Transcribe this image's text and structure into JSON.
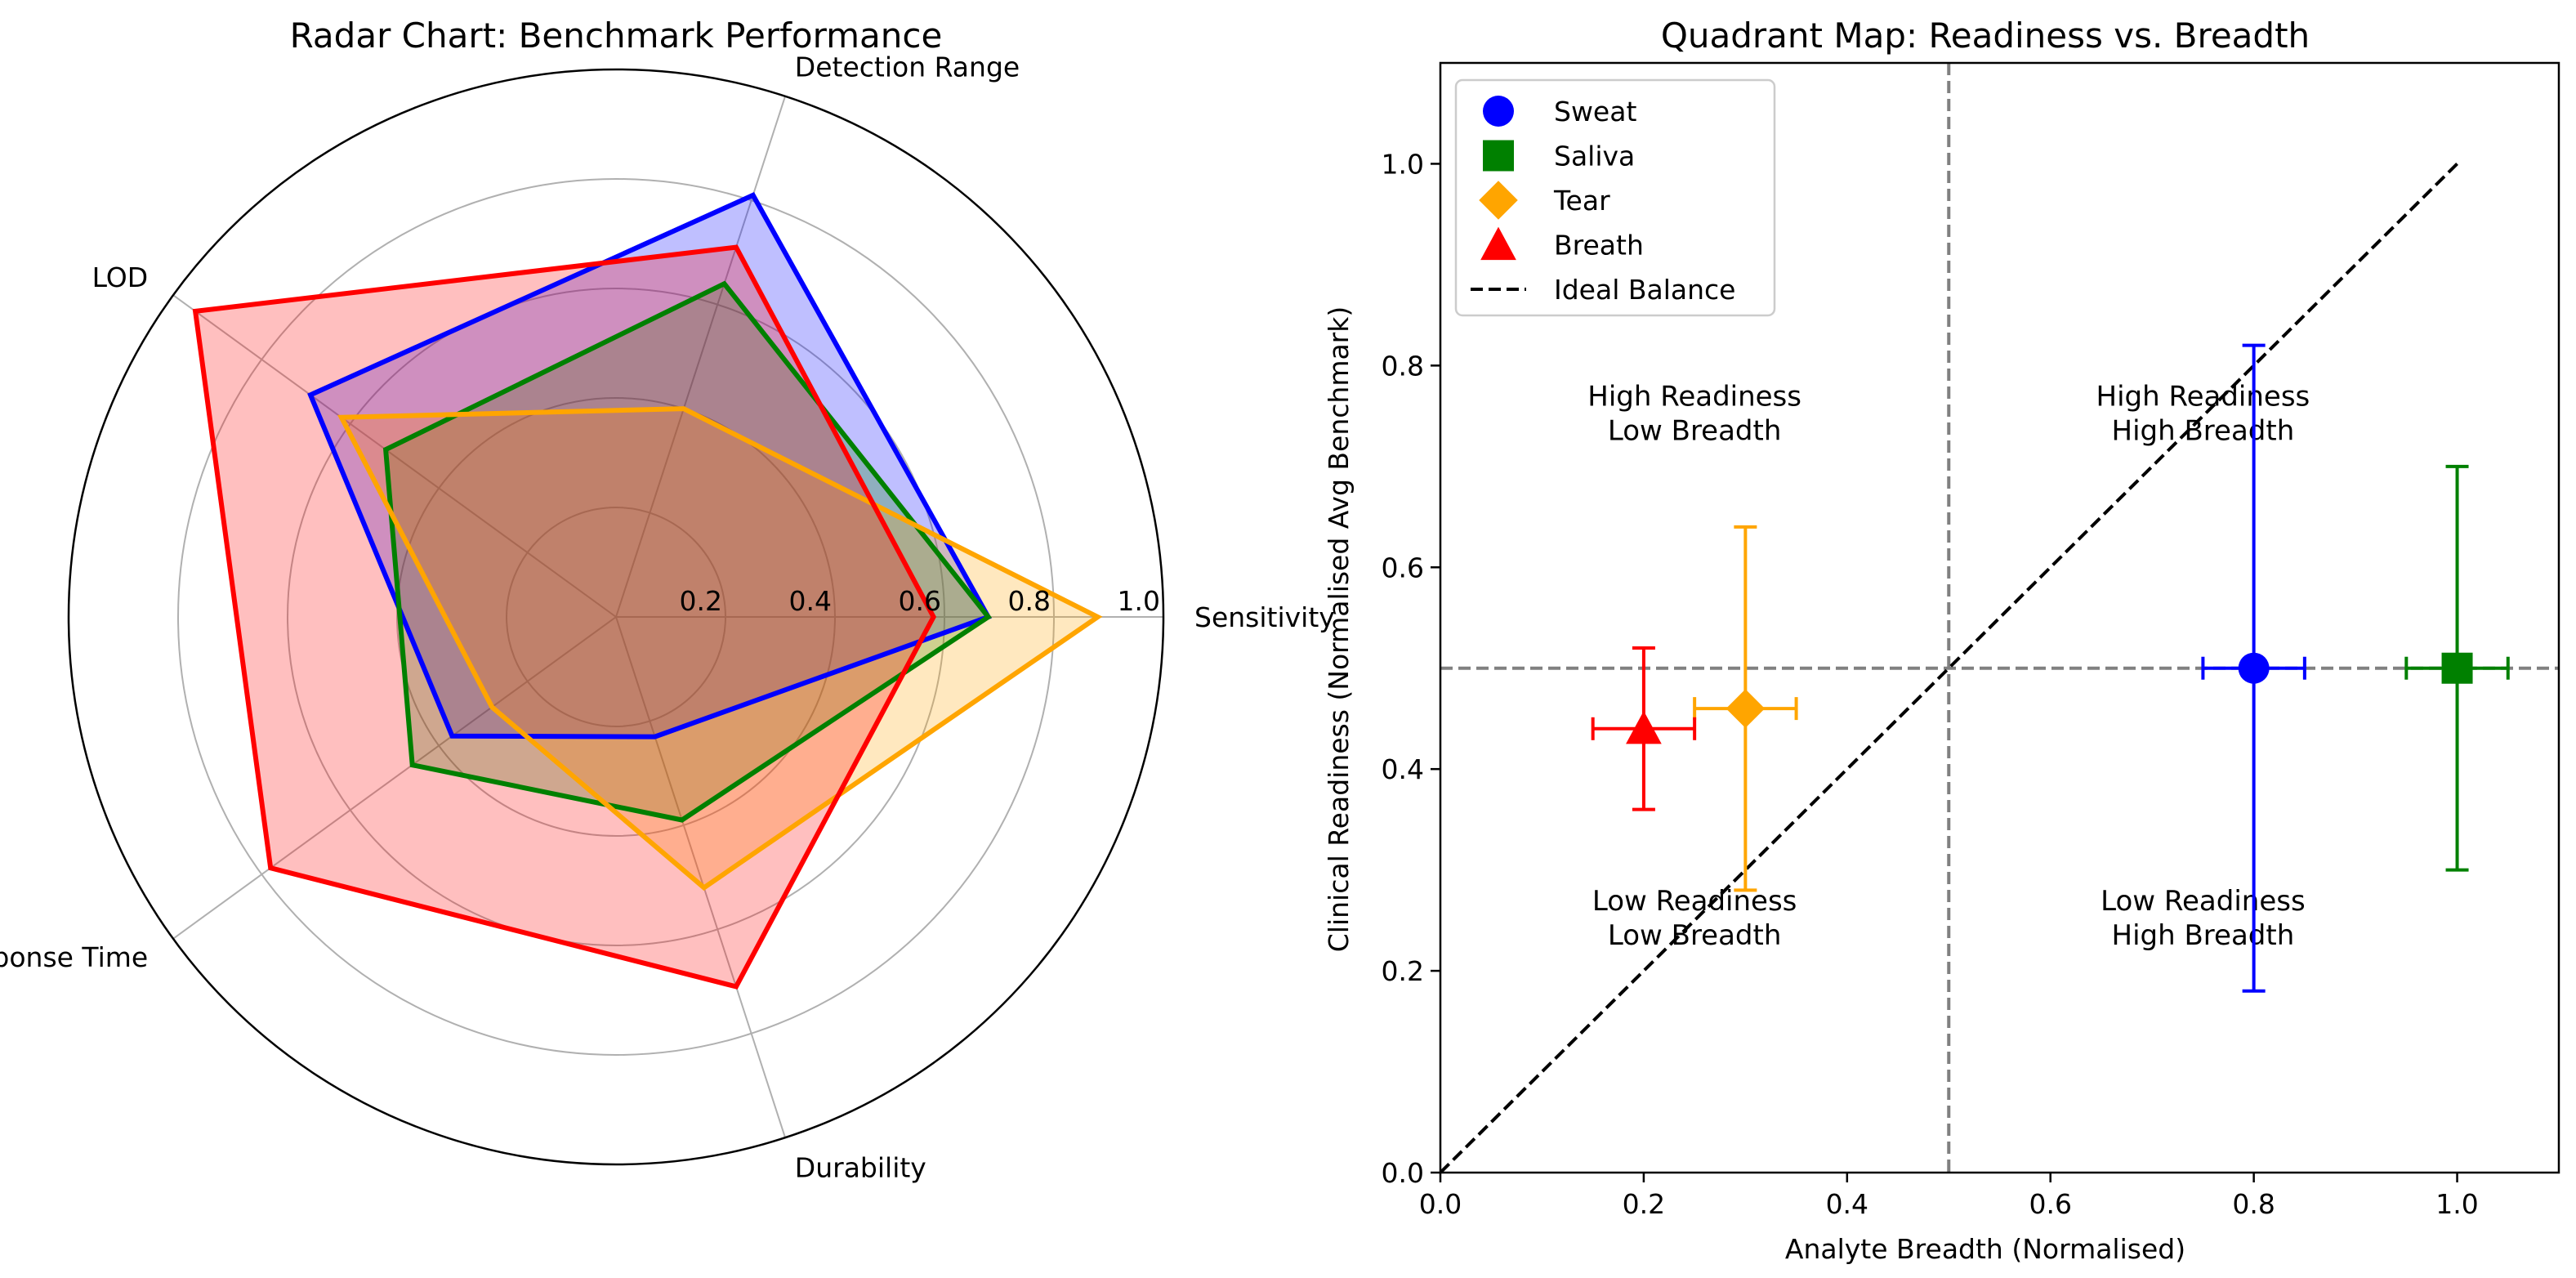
{
  "chart_data": [
    {
      "type": "radar",
      "title": "Radar Chart: Benchmark Performance",
      "axes": [
        "Sensitivity",
        "Detection Range",
        "LOD",
        "Response Time",
        "Durability"
      ],
      "radial_ticks": [
        "0.2",
        "0.4",
        "0.6",
        "0.8",
        "1.0"
      ],
      "rlim": [
        0,
        1.0
      ],
      "series": [
        {
          "name": "Sweat",
          "color": "#0000ff",
          "fill": "#0000ff",
          "values": [
            0.68,
            0.81,
            0.69,
            0.37,
            0.23
          ]
        },
        {
          "name": "Saliva",
          "color": "#008000",
          "fill": "#008000",
          "values": [
            0.68,
            0.64,
            0.52,
            0.46,
            0.39
          ]
        },
        {
          "name": "Tear",
          "color": "#ffa500",
          "fill": "#ffa500",
          "values": [
            0.88,
            0.4,
            0.62,
            0.28,
            0.52
          ]
        },
        {
          "name": "Breath",
          "color": "#ff0000",
          "fill": "#ff0000",
          "values": [
            0.58,
            0.71,
            0.95,
            0.78,
            0.71
          ]
        }
      ]
    },
    {
      "type": "scatter",
      "title": "Quadrant Map: Readiness vs. Breadth",
      "xlabel": "Analyte Breadth (Normalised)",
      "ylabel": "Clinical Readiness (Normalised Avg Benchmark)",
      "xlim": [
        0,
        1.1
      ],
      "ylim": [
        0,
        1.1
      ],
      "xticks": [
        "0.0",
        "0.2",
        "0.4",
        "0.6",
        "0.8",
        "1.0"
      ],
      "yticks": [
        "0.0",
        "0.2",
        "0.4",
        "0.6",
        "0.8",
        "1.0"
      ],
      "thresholds": {
        "x": 0.5,
        "y": 0.5
      },
      "points": [
        {
          "name": "Sweat",
          "x": 0.8,
          "y": 0.5,
          "xerr": 0.05,
          "yerr": 0.32,
          "marker": "circle",
          "color": "#0000ff"
        },
        {
          "name": "Saliva",
          "x": 1.0,
          "y": 0.5,
          "xerr": 0.05,
          "yerr": 0.2,
          "marker": "square",
          "color": "#008000"
        },
        {
          "name": "Tear",
          "x": 0.3,
          "y": 0.46,
          "xerr": 0.05,
          "yerr": 0.18,
          "marker": "diamond",
          "color": "#ffa500"
        },
        {
          "name": "Breath",
          "x": 0.2,
          "y": 0.44,
          "xerr": 0.05,
          "yerr": 0.08,
          "marker": "triangle",
          "color": "#ff0000"
        }
      ],
      "ideal_line": {
        "label": "Ideal Balance",
        "from": [
          0,
          0
        ],
        "to": [
          1,
          1
        ]
      },
      "quadrant_labels": [
        {
          "lines": [
            "High Readiness",
            "Low Breadth"
          ],
          "x": 0.25,
          "y": 0.76
        },
        {
          "lines": [
            "High Readiness",
            "High Breadth"
          ],
          "x": 0.75,
          "y": 0.76
        },
        {
          "lines": [
            "Low Readiness",
            "Low Breadth"
          ],
          "x": 0.25,
          "y": 0.26
        },
        {
          "lines": [
            "Low Readiness",
            "High Breadth"
          ],
          "x": 0.75,
          "y": 0.26
        }
      ],
      "legend": {
        "position": "top-left",
        "entries": [
          {
            "label": "Sweat",
            "marker": "circle",
            "color": "#0000ff"
          },
          {
            "label": "Saliva",
            "marker": "square",
            "color": "#008000"
          },
          {
            "label": "Tear",
            "marker": "diamond",
            "color": "#ffa500"
          },
          {
            "label": "Breath",
            "marker": "triangle",
            "color": "#ff0000"
          },
          {
            "label": "Ideal Balance",
            "marker": "dashed-line",
            "color": "#000000"
          }
        ]
      }
    }
  ]
}
